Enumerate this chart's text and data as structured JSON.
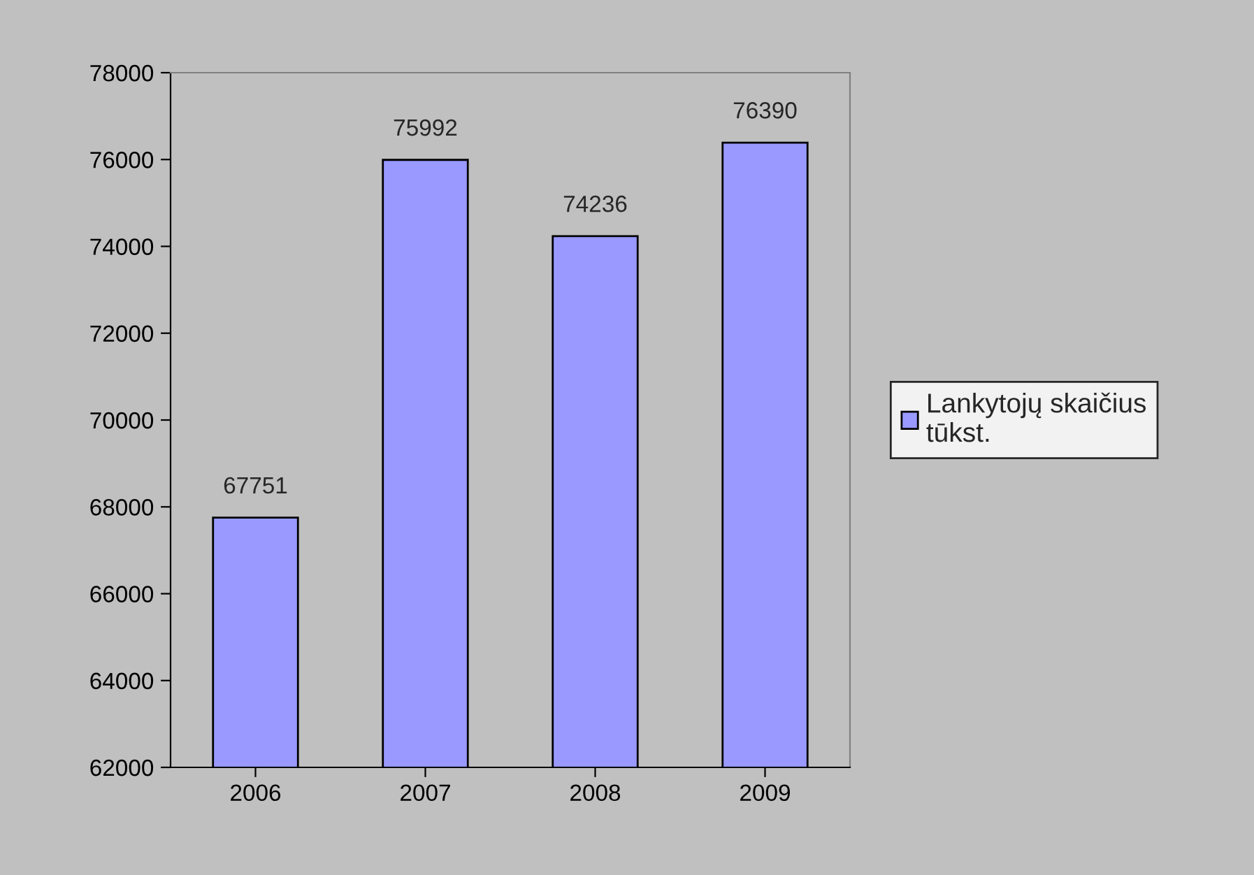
{
  "chart_data": {
    "type": "bar",
    "categories": [
      "2006",
      "2007",
      "2008",
      "2009"
    ],
    "series": [
      {
        "name": "Lankytojų skaičius\ntūkst.",
        "color": "#9999ff",
        "values": [
          67751,
          75992,
          74236,
          76390
        ]
      }
    ],
    "ylim": [
      62000,
      78000
    ],
    "yticks": [
      62000,
      64000,
      66000,
      68000,
      70000,
      72000,
      74000,
      76000,
      78000
    ],
    "data_labels": true,
    "grid": false,
    "legend": "right"
  }
}
